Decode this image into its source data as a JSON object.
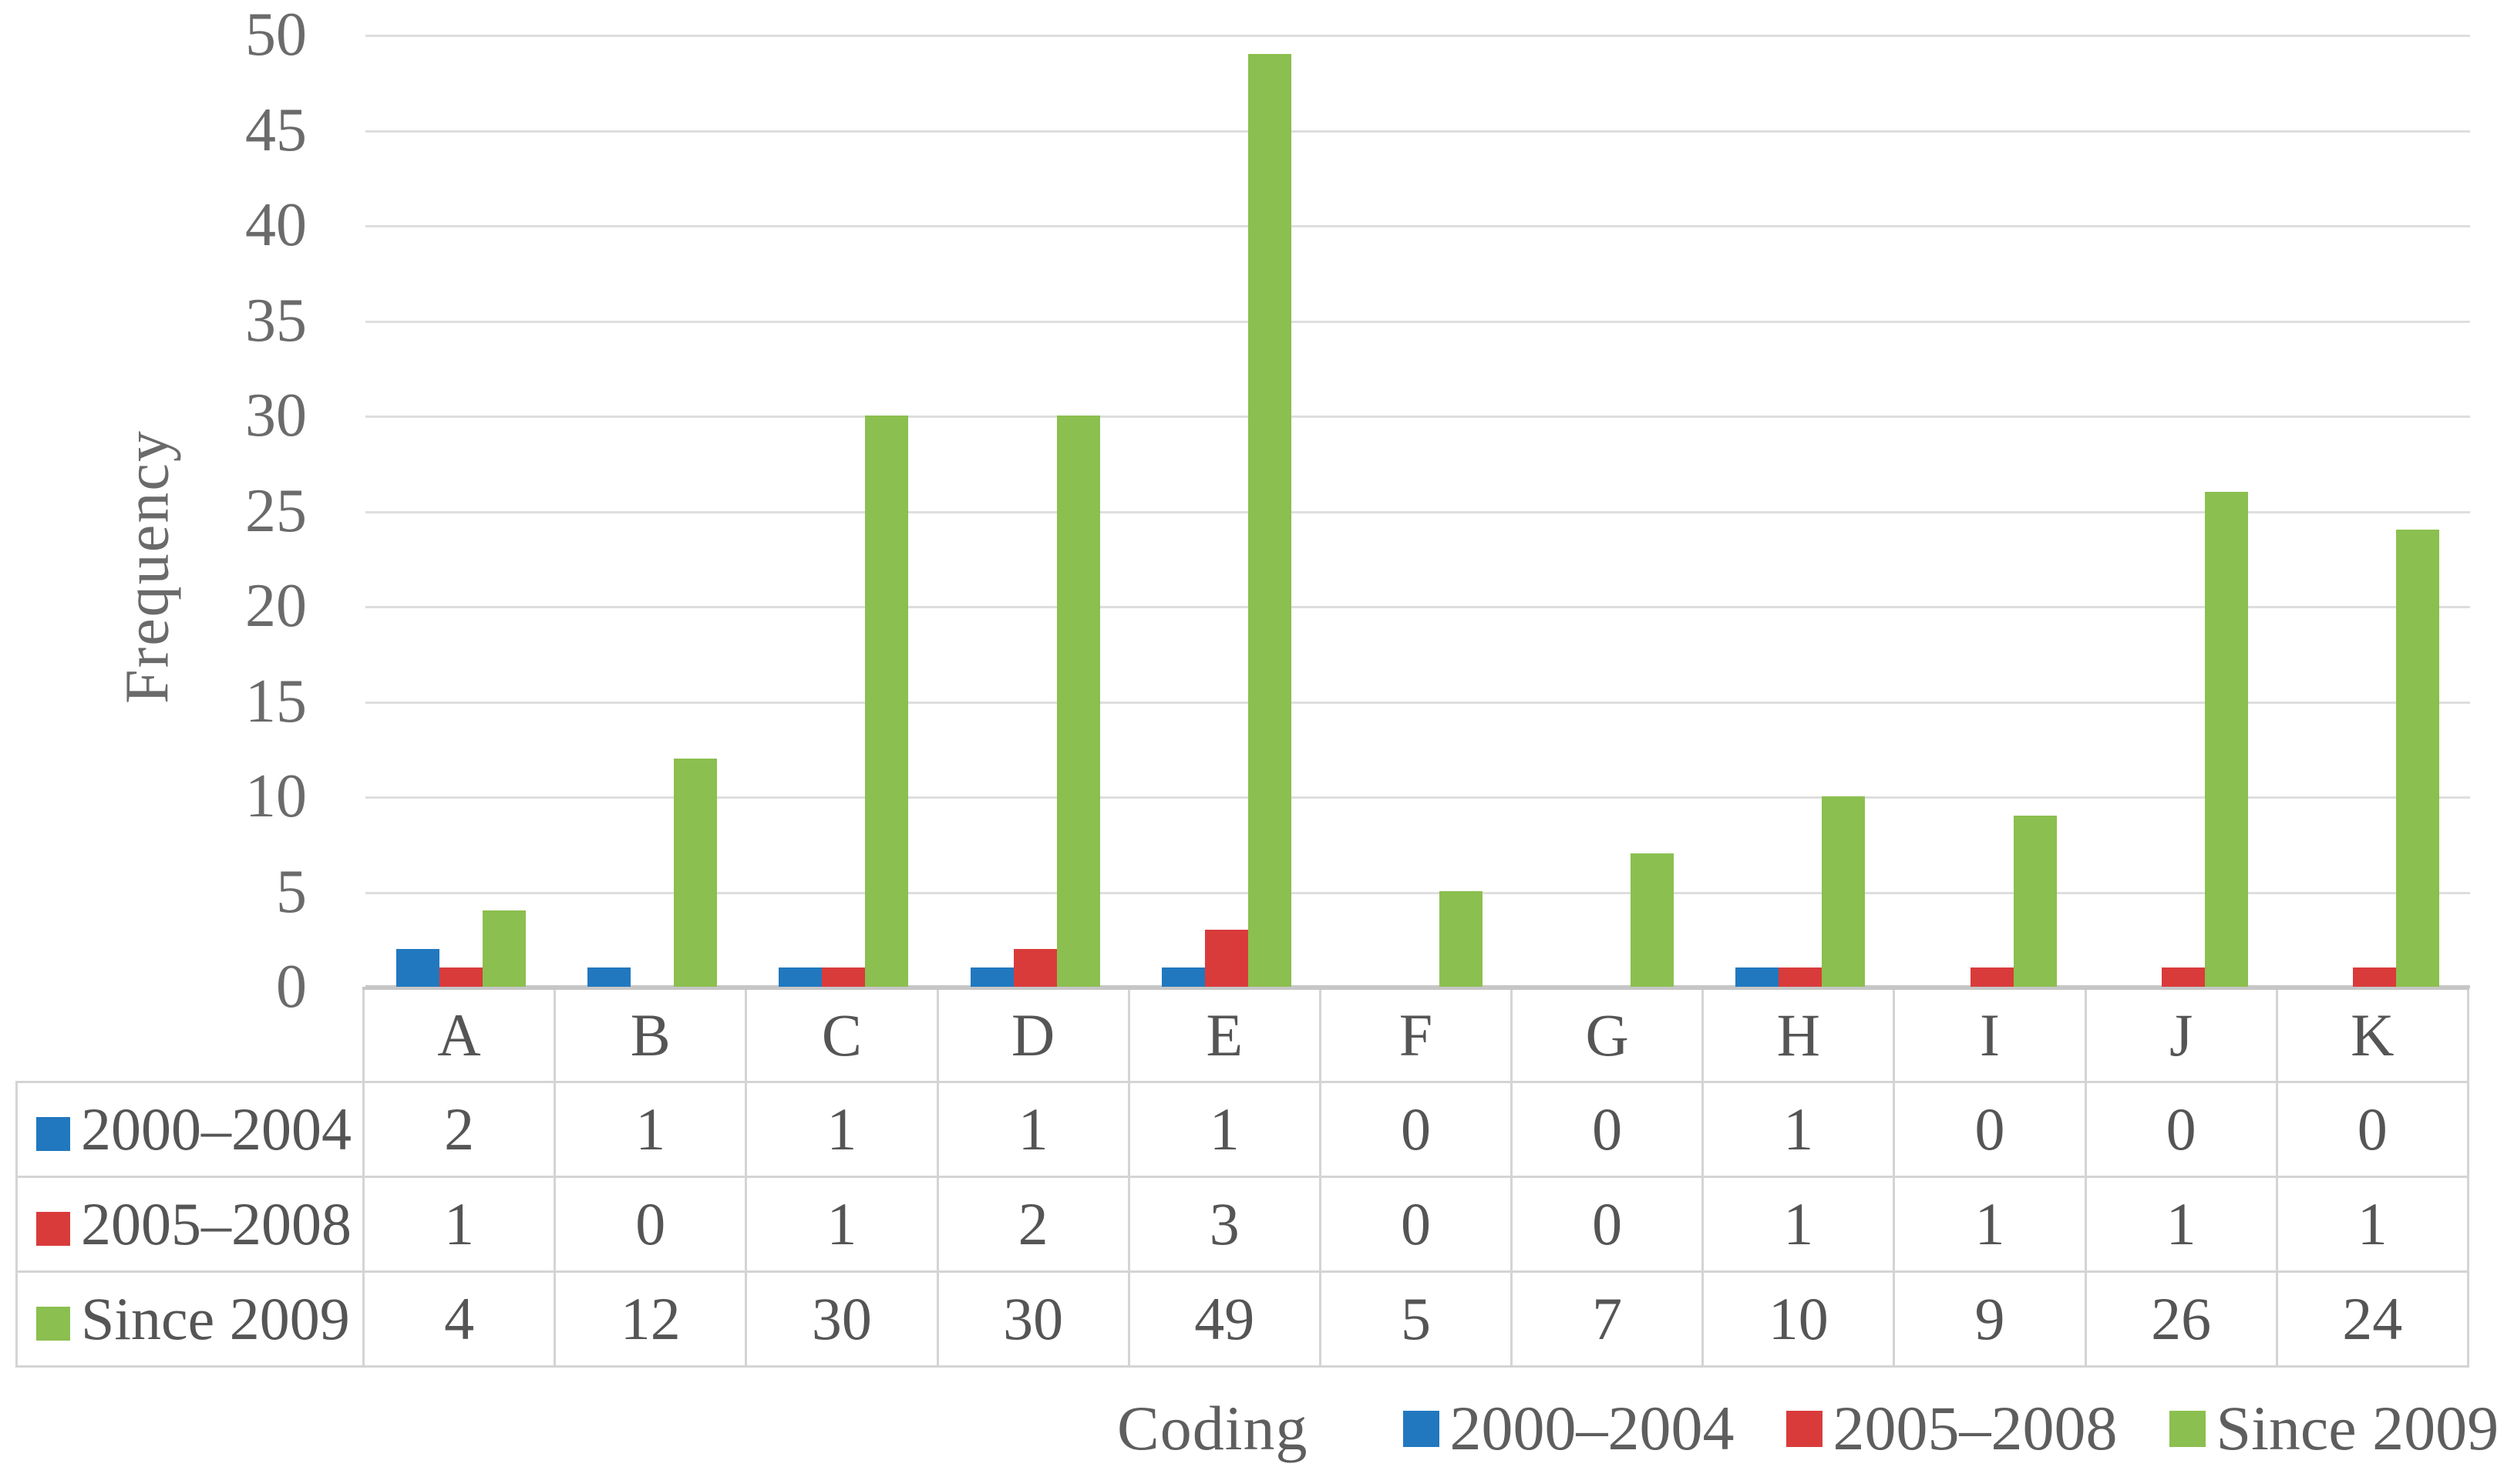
{
  "chart_data": {
    "type": "bar",
    "title": "",
    "categories": [
      "A",
      "B",
      "C",
      "D",
      "E",
      "F",
      "G",
      "H",
      "I",
      "J",
      "K"
    ],
    "series": [
      {
        "name": "2000–2004",
        "color": "#2178BF",
        "values": [
          2,
          1,
          1,
          1,
          1,
          0,
          0,
          1,
          0,
          0,
          0
        ]
      },
      {
        "name": "2005–2008",
        "color": "#D93B3B",
        "values": [
          1,
          0,
          1,
          2,
          3,
          0,
          0,
          1,
          1,
          1,
          1
        ]
      },
      {
        "name": "Since 2009",
        "color": "#8BBF4F",
        "values": [
          4,
          12,
          30,
          30,
          49,
          5,
          7,
          10,
          9,
          26,
          24
        ]
      }
    ],
    "xlabel": "Coding",
    "ylabel": "Frequency",
    "ylim": [
      0,
      50
    ],
    "yticks": [
      0,
      5,
      10,
      15,
      20,
      25,
      30,
      35,
      40,
      45,
      50
    ],
    "grid": "horizontal-only",
    "legend_position": "bottom",
    "data_table_shown": true
  },
  "styles": {
    "gridline_color": "#DEDEDE",
    "axis_line_color": "#C6C6C6",
    "table_border_color": "#D4D4D4",
    "tick_text_color": "#6B6B6B",
    "text_color": "#555555"
  }
}
